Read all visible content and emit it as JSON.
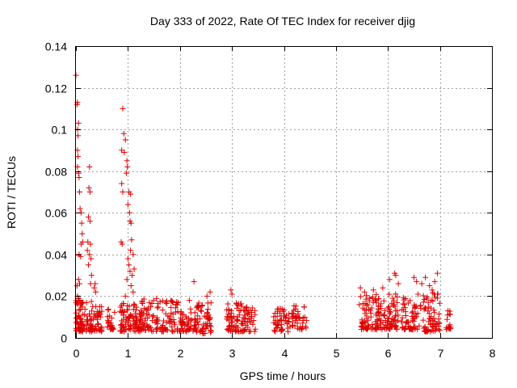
{
  "chart_data": {
    "type": "scatter",
    "title": "Day 333 of 2022, Rate Of TEC Index for receiver djig",
    "xlabel": "GPS time / hours",
    "ylabel": "ROTI / TECUs",
    "xlim": [
      0,
      8
    ],
    "ylim": [
      0,
      0.14
    ],
    "xticks": [
      "0",
      "1",
      "2",
      "3",
      "4",
      "5",
      "6",
      "7",
      "8"
    ],
    "yticks": [
      "0",
      "0.02",
      "0.04",
      "0.06",
      "0.08",
      "0.1",
      "0.12",
      "0.14"
    ],
    "grid": true,
    "marker": "+",
    "color": "#e00000",
    "series": [
      {
        "name": "ROTI",
        "points": [
          [
            0.0,
            0.126
          ],
          [
            0.02,
            0.112
          ],
          [
            0.03,
            0.113
          ],
          [
            0.03,
            0.1
          ],
          [
            0.04,
            0.097
          ],
          [
            0.05,
            0.103
          ],
          [
            0.03,
            0.09
          ],
          [
            0.04,
            0.087
          ],
          [
            0.03,
            0.082
          ],
          [
            0.05,
            0.079
          ],
          [
            0.06,
            0.077
          ],
          [
            0.07,
            0.07
          ],
          [
            0.08,
            0.062
          ],
          [
            0.1,
            0.06
          ],
          [
            0.11,
            0.055
          ],
          [
            0.12,
            0.05
          ],
          [
            0.1,
            0.045
          ],
          [
            0.13,
            0.046
          ],
          [
            0.06,
            0.04
          ],
          [
            0.09,
            0.039
          ],
          [
            0.05,
            0.028
          ],
          [
            0.02,
            0.025
          ],
          [
            0.07,
            0.026
          ],
          [
            0.03,
            0.02
          ],
          [
            0.26,
            0.082
          ],
          [
            0.25,
            0.072
          ],
          [
            0.27,
            0.07
          ],
          [
            0.24,
            0.058
          ],
          [
            0.27,
            0.056
          ],
          [
            0.23,
            0.046
          ],
          [
            0.28,
            0.045
          ],
          [
            0.22,
            0.042
          ],
          [
            0.26,
            0.04
          ],
          [
            0.29,
            0.038
          ],
          [
            0.24,
            0.035
          ],
          [
            0.3,
            0.03
          ],
          [
            0.28,
            0.026
          ],
          [
            0.37,
            0.026
          ],
          [
            0.35,
            0.024
          ],
          [
            0.38,
            0.022
          ],
          [
            0.9,
            0.11
          ],
          [
            0.92,
            0.098
          ],
          [
            0.95,
            0.095
          ],
          [
            0.88,
            0.09
          ],
          [
            0.93,
            0.089
          ],
          [
            0.98,
            0.085
          ],
          [
            0.99,
            0.082
          ],
          [
            0.97,
            0.079
          ],
          [
            0.88,
            0.074
          ],
          [
            0.9,
            0.07
          ],
          [
            1.02,
            0.07
          ],
          [
            1.05,
            0.069
          ],
          [
            1.0,
            0.064
          ],
          [
            1.03,
            0.06
          ],
          [
            1.04,
            0.056
          ],
          [
            1.06,
            0.055
          ],
          [
            1.07,
            0.047
          ],
          [
            0.87,
            0.046
          ],
          [
            0.89,
            0.045
          ],
          [
            1.05,
            0.042
          ],
          [
            1.1,
            0.04
          ],
          [
            1.0,
            0.038
          ],
          [
            1.02,
            0.035
          ],
          [
            1.04,
            0.032
          ],
          [
            1.08,
            0.03
          ],
          [
            1.12,
            0.033
          ],
          [
            0.98,
            0.028
          ],
          [
            1.06,
            0.025
          ],
          [
            1.1,
            0.022
          ],
          [
            0.95,
            0.02
          ],
          [
            2.27,
            0.027
          ],
          [
            2.18,
            0.018
          ],
          [
            2.35,
            0.015
          ],
          [
            2.52,
            0.02
          ],
          [
            2.58,
            0.022
          ],
          [
            2.98,
            0.023
          ],
          [
            3.0,
            0.021
          ],
          [
            5.47,
            0.024
          ],
          [
            5.55,
            0.022
          ],
          [
            5.72,
            0.023
          ],
          [
            5.9,
            0.024
          ],
          [
            6.13,
            0.031
          ],
          [
            6.15,
            0.03
          ],
          [
            6.03,
            0.028
          ],
          [
            6.2,
            0.026
          ],
          [
            6.5,
            0.029
          ],
          [
            6.55,
            0.027
          ],
          [
            6.65,
            0.026
          ],
          [
            6.72,
            0.029
          ],
          [
            6.8,
            0.025
          ],
          [
            6.95,
            0.031
          ],
          [
            6.9,
            0.027
          ],
          [
            6.85,
            0.023
          ]
        ],
        "clusters": [
          [
            0.0,
            0.15,
            0.003,
            0.019,
            60
          ],
          [
            0.15,
            0.5,
            0.003,
            0.018,
            70
          ],
          [
            0.6,
            0.75,
            0.004,
            0.014,
            25
          ],
          [
            0.85,
            1.25,
            0.003,
            0.017,
            90
          ],
          [
            1.25,
            1.55,
            0.003,
            0.019,
            50
          ],
          [
            1.55,
            2.0,
            0.003,
            0.018,
            70
          ],
          [
            2.0,
            2.3,
            0.003,
            0.014,
            50
          ],
          [
            2.3,
            2.6,
            0.002,
            0.018,
            60
          ],
          [
            2.9,
            3.2,
            0.003,
            0.017,
            60
          ],
          [
            3.2,
            3.45,
            0.003,
            0.015,
            40
          ],
          [
            3.8,
            4.1,
            0.003,
            0.014,
            50
          ],
          [
            4.1,
            4.45,
            0.004,
            0.016,
            40
          ],
          [
            5.45,
            5.85,
            0.004,
            0.021,
            80
          ],
          [
            5.85,
            6.2,
            0.004,
            0.022,
            70
          ],
          [
            6.25,
            6.7,
            0.004,
            0.021,
            70
          ],
          [
            6.7,
            7.0,
            0.003,
            0.022,
            60
          ],
          [
            7.12,
            7.22,
            0.004,
            0.013,
            15
          ]
        ]
      }
    ]
  }
}
